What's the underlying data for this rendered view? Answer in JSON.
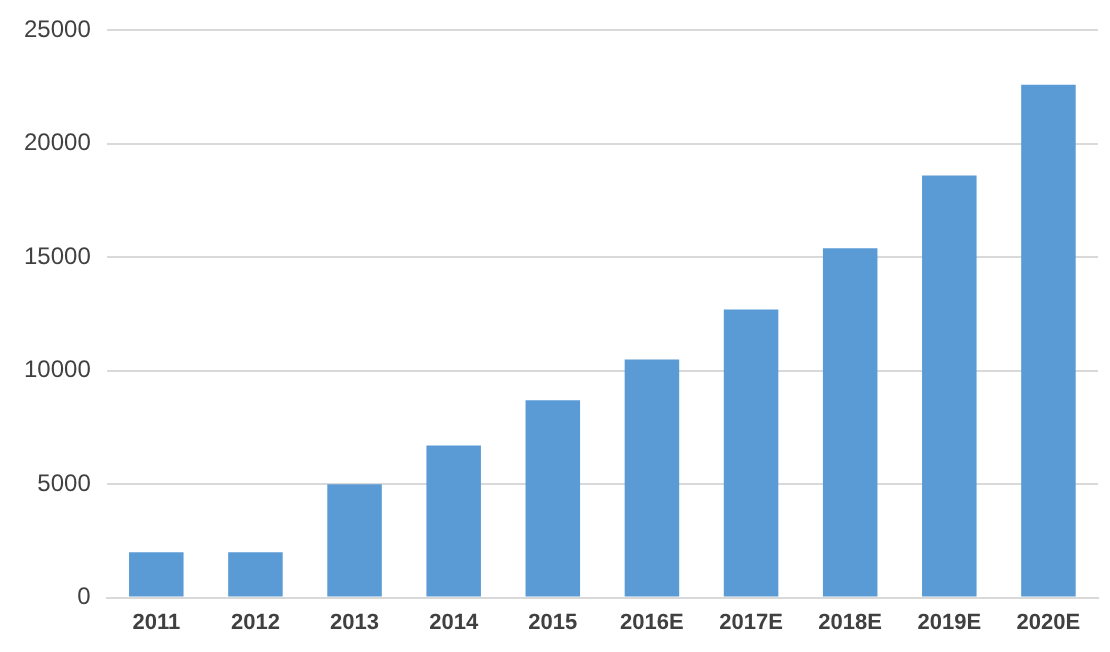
{
  "chart_data": {
    "type": "bar",
    "categories": [
      "2011",
      "2012",
      "2013",
      "2014",
      "2015",
      "2016E",
      "2017E",
      "2018E",
      "2019E",
      "2020E"
    ],
    "values": [
      2000,
      2000,
      5000,
      6700,
      8700,
      10500,
      12700,
      15400,
      18600,
      22600
    ],
    "color": "#5b9bd5",
    "ylim": [
      0,
      25000
    ],
    "yticks": [
      0,
      5000,
      10000,
      15000,
      20000,
      25000
    ],
    "grid": "y"
  }
}
